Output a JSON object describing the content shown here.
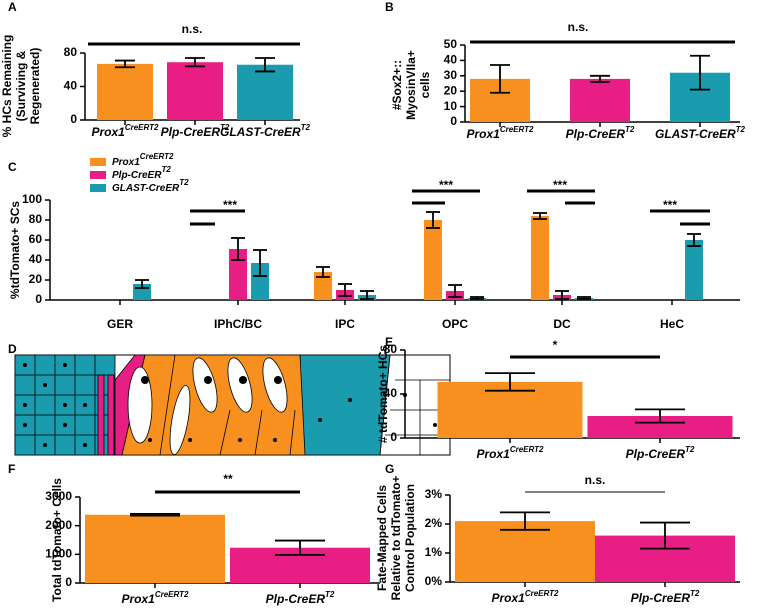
{
  "diagram": {
    "label": "D"
  },
  "chart_data": [
    {
      "type": "bar",
      "label": "A",
      "ylabel": [
        "% HCs Remaining",
        "(Surviving &",
        "Regenerated)"
      ],
      "categories": [
        {
          "base": "Prox1",
          "sup": "CreERT2"
        },
        {
          "base": "Plp-CreER",
          "sup": "T2"
        },
        {
          "base": "GLAST-CreER",
          "sup": "T2"
        }
      ],
      "colors": [
        "#f7901e",
        "#e91e84",
        "#1a9bae"
      ],
      "values": [
        67,
        69,
        66
      ],
      "errors": [
        4,
        5,
        8
      ],
      "ylim": [
        0,
        80
      ],
      "yticks": [
        0,
        40,
        80
      ],
      "annotations": [
        "n.s."
      ]
    },
    {
      "type": "bar",
      "label": "B",
      "ylabel": [
        "#Sox2+::",
        "MyosinVIIa+",
        "cells"
      ],
      "categories": [
        {
          "base": "Prox1",
          "sup": "CreERT2"
        },
        {
          "base": "Plp-CreER",
          "sup": "T2"
        },
        {
          "base": "GLAST-CreER",
          "sup": "T2"
        }
      ],
      "colors": [
        "#f7901e",
        "#e91e84",
        "#1a9bae"
      ],
      "values": [
        28,
        28,
        32
      ],
      "errors": [
        9,
        2,
        11
      ],
      "ylim": [
        0,
        50
      ],
      "yticks": [
        0,
        10,
        20,
        30,
        40,
        50
      ],
      "annotations": [
        "n.s."
      ]
    },
    {
      "type": "grouped_bar",
      "label": "C",
      "ylabel": [
        "%tdTomato+ SCs"
      ],
      "categories": [
        "GER",
        "IPhC/BC",
        "IPC",
        "OPC",
        "DC",
        "HeC"
      ],
      "series": [
        {
          "name": {
            "base": "Prox1",
            "sup": "CreERT2"
          },
          "color": "#f7901e",
          "values": [
            0,
            0,
            28,
            80,
            84,
            0
          ],
          "errors": [
            null,
            null,
            5,
            8,
            3,
            null
          ]
        },
        {
          "name": {
            "base": "Plp-CreER",
            "sup": "T2"
          },
          "color": "#e91e84",
          "values": [
            0,
            51,
            10,
            9,
            5,
            0
          ],
          "errors": [
            null,
            11,
            6,
            6,
            4,
            null
          ]
        },
        {
          "name": {
            "base": "GLAST-CreER",
            "sup": "T2"
          },
          "color": "#1a9bae",
          "values": [
            16,
            37,
            5,
            2,
            2,
            60
          ],
          "errors": [
            4,
            13,
            4,
            1,
            1,
            6
          ]
        }
      ],
      "ylim": [
        0,
        100
      ],
      "yticks": [
        0,
        20,
        40,
        60,
        80,
        100
      ],
      "annotations": [
        "***",
        "***",
        "***",
        "***"
      ]
    },
    {
      "type": "bar",
      "label": "E",
      "ylabel": [
        "# tdTomato+ HCs"
      ],
      "categories": [
        {
          "base": "Prox1",
          "sup": "CreERT2"
        },
        {
          "base": "Plp-CreER",
          "sup": "T2"
        }
      ],
      "colors": [
        "#f7901e",
        "#e91e84"
      ],
      "values": [
        51,
        20
      ],
      "errors": [
        8,
        6
      ],
      "ylim": [
        0,
        80
      ],
      "yticks": [
        0,
        40,
        80
      ],
      "annotations": [
        "*"
      ]
    },
    {
      "type": "bar",
      "label": "F",
      "ylabel": [
        "Total tdTomato+ Cells"
      ],
      "categories": [
        {
          "base": "Prox1",
          "sup": "CreERT2"
        },
        {
          "base": "Plp-CreER",
          "sup": "T2"
        }
      ],
      "colors": [
        "#f7901e",
        "#e91e84"
      ],
      "values": [
        2380,
        1230
      ],
      "errors": [
        30,
        250
      ],
      "ylim": [
        0,
        3000
      ],
      "yticks": [
        0,
        1000,
        2000,
        3000
      ],
      "annotations": [
        "**"
      ]
    },
    {
      "type": "bar",
      "label": "G",
      "ylabel": [
        "Fate-Mapped Cells",
        "Relative to tdTomato+",
        "Control Population"
      ],
      "categories": [
        {
          "base": "Prox1",
          "sup": "CreERT2"
        },
        {
          "base": "Plp-CreER",
          "sup": "T2"
        }
      ],
      "colors": [
        "#f7901e",
        "#e91e84"
      ],
      "values": [
        2.1,
        1.6
      ],
      "errors": [
        0.3,
        0.45
      ],
      "ylim": [
        0,
        3
      ],
      "yticks": [
        {
          "value": 0,
          "label": "0%"
        },
        {
          "value": 1,
          "label": "1%"
        },
        {
          "value": 2,
          "label": "2%"
        },
        {
          "value": 3,
          "label": "3%"
        }
      ],
      "annotations": [
        "n.s."
      ]
    }
  ]
}
